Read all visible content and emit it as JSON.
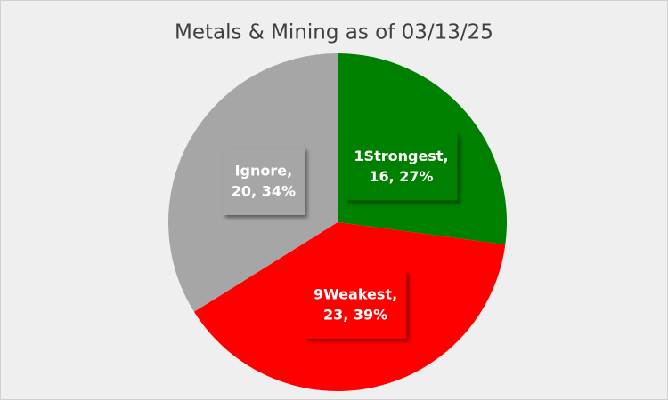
{
  "chart_data": {
    "type": "pie",
    "title": "Metals & Mining as of 03/13/25",
    "categories": [
      "1Strongest,",
      "9Weakest,",
      "Ignore,"
    ],
    "values": [
      16,
      23,
      20
    ],
    "value_labels": [
      "16, 27%",
      "23, 39%",
      "20, 34%"
    ],
    "colors": [
      "#008000",
      "#ff0000",
      "#a6a6a6"
    ]
  }
}
